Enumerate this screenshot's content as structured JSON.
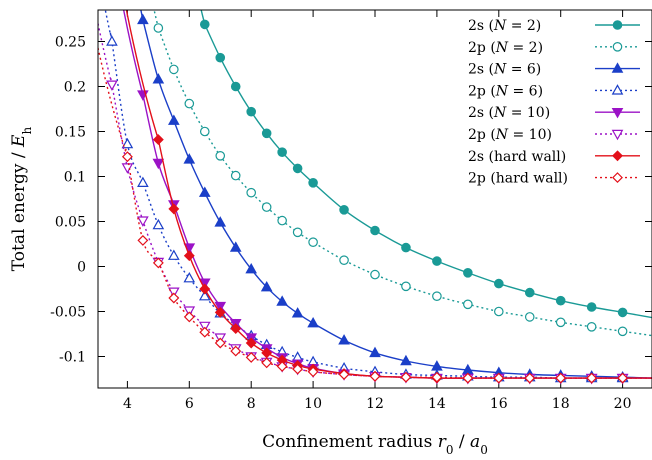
{
  "chart_data": {
    "type": "line",
    "title": "",
    "xlabel": "Confinement radius r0 / a0",
    "ylabel": "Total energy / Eh",
    "xlim": [
      3.05,
      20.95
    ],
    "ylim": [
      -0.135,
      0.285
    ],
    "x_ticks": [
      4,
      6,
      8,
      10,
      12,
      14,
      16,
      18,
      20
    ],
    "y_ticks": [
      -0.1,
      -0.05,
      0,
      0.05,
      0.1,
      0.15,
      0.2,
      0.25
    ],
    "legend_position": "top-right",
    "series": [
      {
        "name": "2s (N = 2)",
        "legend_main": "2s (",
        "legend_var": "N",
        "legend_tail": " = 2)",
        "color": "#1a9a96",
        "line": "solid",
        "marker": "circle-filled",
        "x": [
          6.5,
          7.0,
          7.5,
          8.0,
          8.5,
          9.0,
          9.5,
          10.0,
          11.0,
          12.0,
          13.0,
          14.0,
          15.0,
          16.0,
          17.0,
          18.0,
          19.0,
          20.0
        ],
        "y": [
          0.269,
          0.232,
          0.2,
          0.172,
          0.148,
          0.127,
          0.109,
          0.093,
          0.063,
          0.04,
          0.021,
          0.006,
          -0.007,
          -0.019,
          -0.029,
          -0.038,
          -0.045,
          -0.051
        ]
      },
      {
        "name": "2p (N = 2)",
        "legend_main": "2p (",
        "legend_var": "N",
        "legend_tail": " = 2)",
        "color": "#1a9a96",
        "line": "dotted",
        "marker": "circle-open",
        "x": [
          5.0,
          5.5,
          6.0,
          6.5,
          7.0,
          7.5,
          8.0,
          8.5,
          9.0,
          9.5,
          10.0,
          11.0,
          12.0,
          13.0,
          14.0,
          15.0,
          16.0,
          17.0,
          18.0,
          19.0,
          20.0
        ],
        "y": [
          0.265,
          0.219,
          0.181,
          0.15,
          0.123,
          0.101,
          0.082,
          0.066,
          0.051,
          0.038,
          0.027,
          0.007,
          -0.009,
          -0.022,
          -0.033,
          -0.042,
          -0.05,
          -0.056,
          -0.062,
          -0.067,
          -0.072
        ]
      },
      {
        "name": "2s (N = 6)",
        "legend_main": "2s (",
        "legend_var": "N",
        "legend_tail": " = 6)",
        "color": "#1b3fc8",
        "line": "solid",
        "marker": "triangle-up-filled",
        "x": [
          4.5,
          5.0,
          5.5,
          6.0,
          6.5,
          7.0,
          7.5,
          8.0,
          8.5,
          9.0,
          9.5,
          10.0,
          11.0,
          12.0,
          13.0,
          14.0,
          15.0,
          16.0,
          17.0,
          18.0,
          19.0,
          20.0
        ],
        "y": [
          0.274,
          0.208,
          0.162,
          0.119,
          0.082,
          0.049,
          0.021,
          -0.003,
          -0.023,
          -0.039,
          -0.052,
          -0.063,
          -0.082,
          -0.096,
          -0.105,
          -0.111,
          -0.115,
          -0.118,
          -0.12,
          -0.121,
          -0.122,
          -0.123
        ]
      },
      {
        "name": "2p (N = 6)",
        "legend_main": "2p (",
        "legend_var": "N",
        "legend_tail": " = 6)",
        "color": "#1b3fc8",
        "line": "dotted",
        "marker": "triangle-up-open",
        "x": [
          3.5,
          4.0,
          4.5,
          5.0,
          5.5,
          6.0,
          6.5,
          7.0,
          7.5,
          8.0,
          8.5,
          9.0,
          9.5,
          10.0,
          11.0,
          12.0,
          13.0,
          14.0,
          15.0,
          16.0,
          17.0,
          18.0,
          19.0,
          20.0
        ],
        "y": [
          0.25,
          0.136,
          0.093,
          0.046,
          0.012,
          -0.013,
          -0.033,
          -0.052,
          -0.065,
          -0.077,
          -0.087,
          -0.095,
          -0.101,
          -0.106,
          -0.113,
          -0.117,
          -0.12,
          -0.121,
          -0.122,
          -0.123,
          -0.123,
          -0.124,
          -0.124,
          -0.124
        ]
      },
      {
        "name": "2s (N = 10)",
        "legend_main": "2s (",
        "legend_var": "N",
        "legend_tail": " = 10)",
        "color": "#9b12c6",
        "line": "solid",
        "marker": "triangle-down-filled",
        "x": [
          4.5,
          5.0,
          5.5,
          6.0,
          6.5,
          7.0,
          7.5,
          8.0,
          8.5,
          9.0,
          9.5,
          10.0,
          11.0,
          12.0,
          13.0,
          14.0,
          15.0,
          16.0,
          17.0,
          18.0,
          19.0,
          20.0
        ],
        "y": [
          0.191,
          0.115,
          0.069,
          0.021,
          -0.018,
          -0.044,
          -0.063,
          -0.079,
          -0.091,
          -0.101,
          -0.108,
          -0.113,
          -0.119,
          -0.122,
          -0.123,
          -0.124,
          -0.124,
          -0.124,
          -0.124,
          -0.124,
          -0.124,
          -0.124
        ]
      },
      {
        "name": "2p (N = 10)",
        "legend_main": "2p (",
        "legend_var": "N",
        "legend_tail": " = 10)",
        "color": "#9b12c6",
        "line": "dotted",
        "marker": "triangle-down-open",
        "x": [
          3.5,
          4.0,
          4.5,
          5.0,
          5.5,
          6.0,
          6.5,
          7.0,
          7.5,
          8.0,
          8.5,
          9.0,
          9.5,
          10.0,
          11.0,
          12.0,
          13.0,
          14.0,
          15.0,
          16.0,
          17.0,
          18.0,
          19.0,
          20.0
        ],
        "y": [
          0.202,
          0.11,
          0.051,
          0.005,
          -0.028,
          -0.049,
          -0.066,
          -0.079,
          -0.091,
          -0.1,
          -0.106,
          -0.111,
          -0.114,
          -0.117,
          -0.12,
          -0.122,
          -0.123,
          -0.124,
          -0.124,
          -0.124,
          -0.124,
          -0.124,
          -0.124,
          -0.124
        ]
      },
      {
        "name": "2s (hard wall)",
        "legend_main": "2s (hard wall)",
        "legend_var": "",
        "legend_tail": "",
        "color": "#e3101a",
        "line": "solid",
        "marker": "diamond-filled",
        "x": [
          5.0,
          5.5,
          6.0,
          6.5,
          7.0,
          7.5,
          8.0,
          8.5,
          9.0,
          9.5,
          10.0,
          11.0,
          12.0,
          13.0,
          14.0,
          15.0,
          16.0,
          17.0,
          18.0,
          19.0,
          20.0
        ],
        "y": [
          0.141,
          0.064,
          0.012,
          -0.025,
          -0.051,
          -0.069,
          -0.085,
          -0.096,
          -0.104,
          -0.11,
          -0.114,
          -0.119,
          -0.122,
          -0.123,
          -0.124,
          -0.124,
          -0.124,
          -0.124,
          -0.124,
          -0.124,
          -0.124
        ]
      },
      {
        "name": "2p (hard wall)",
        "legend_main": "2p (hard wall)",
        "legend_var": "",
        "legend_tail": "",
        "color": "#e3101a",
        "line": "dotted",
        "marker": "diamond-open",
        "x": [
          4.0,
          4.5,
          5.0,
          5.5,
          6.0,
          6.5,
          7.0,
          7.5,
          8.0,
          8.5,
          9.0,
          9.5,
          10.0,
          11.0,
          12.0,
          13.0,
          14.0,
          15.0,
          16.0,
          17.0,
          18.0,
          19.0,
          20.0
        ],
        "y": [
          0.122,
          0.029,
          0.004,
          -0.035,
          -0.056,
          -0.073,
          -0.085,
          -0.094,
          -0.101,
          -0.107,
          -0.111,
          -0.114,
          -0.117,
          -0.12,
          -0.122,
          -0.123,
          -0.123,
          -0.124,
          -0.124,
          -0.124,
          -0.124,
          -0.124,
          -0.124
        ]
      }
    ]
  }
}
